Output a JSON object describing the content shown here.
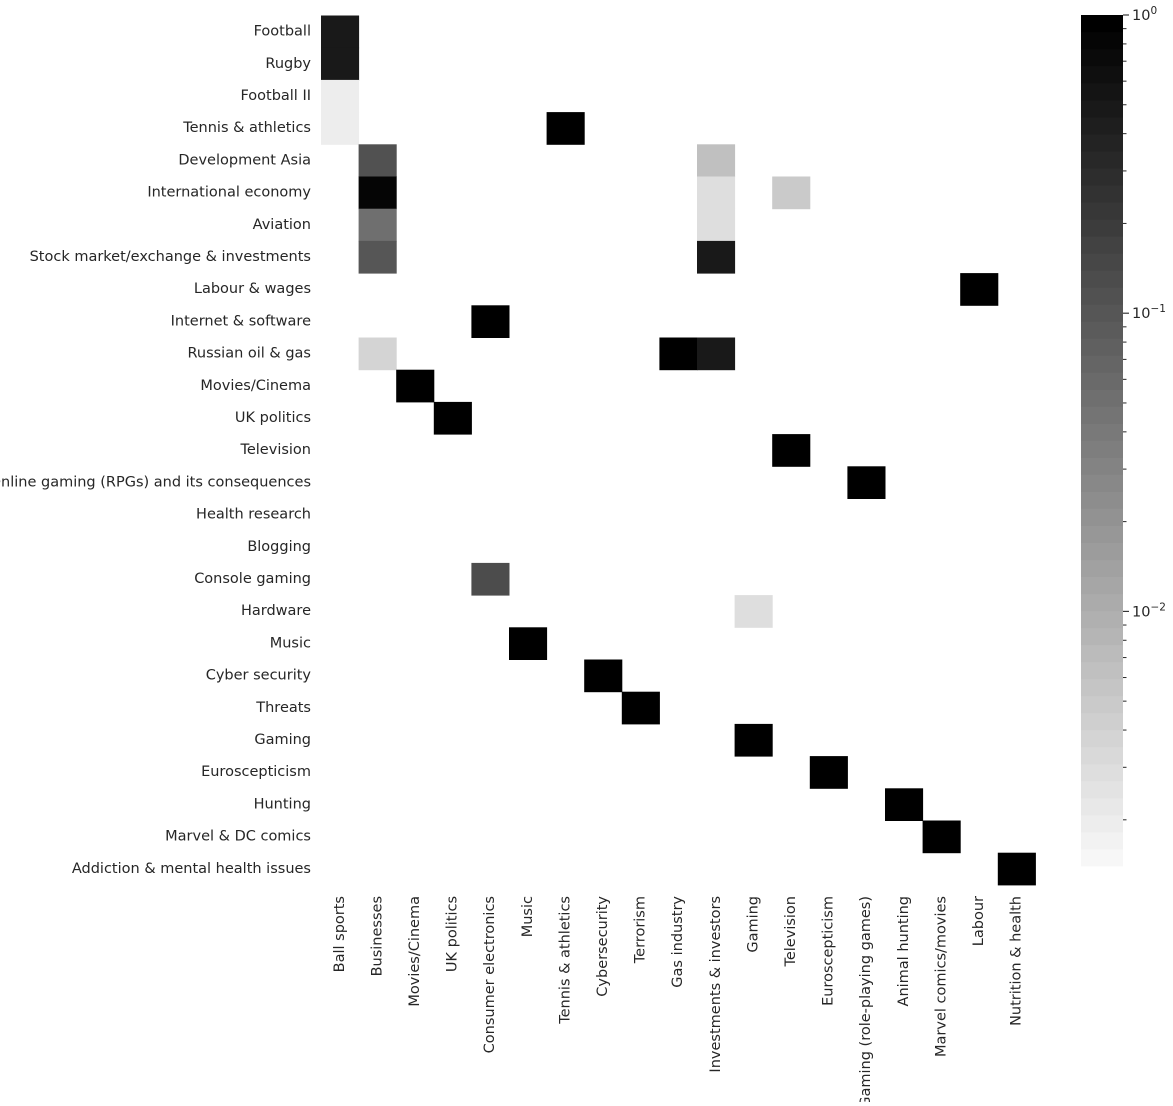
{
  "chart_data": {
    "type": "heatmap",
    "title": "",
    "xlabel": "",
    "ylabel": "",
    "rows": [
      "Football",
      "Rugby",
      "Football II",
      "Tennis & athletics",
      "Development Asia",
      "International economy",
      "Aviation",
      "Stock market/exchange & investments",
      "Labour & wages",
      "Internet & software",
      "Russian oil & gas",
      "Movies/Cinema",
      "UK politics",
      "Television",
      "Online gaming (RPGs) and its consequences",
      "Health research",
      "Blogging",
      "Console gaming",
      "Hardware",
      "Music",
      "Cyber security",
      "Threats",
      "Gaming ",
      "Euroscepticism",
      "Hunting",
      "Marvel & DC comics",
      "Addiction & mental health issues"
    ],
    "columns": [
      "Ball sports",
      "Businesses",
      "Movies/Cinema",
      "UK politics",
      "Consumer electronics",
      "Music",
      "Tennis & athletics",
      "Cybersecurity",
      "Terrorism",
      "Gas industry",
      "Investments & investors",
      "Gaming",
      "Television",
      "Euroscepticism",
      "Gaming (role-playing games)",
      "Animal hunting",
      "Marvel comics/movies",
      "Labour",
      "Nutrition & health"
    ],
    "cells": [
      {
        "row": 0,
        "col": 0,
        "value": 0.5
      },
      {
        "row": 1,
        "col": 0,
        "value": 0.5
      },
      {
        "row": 2,
        "col": 0,
        "value": 0.002
      },
      {
        "row": 3,
        "col": 0,
        "value": 0.002
      },
      {
        "row": 3,
        "col": 6,
        "value": 1.0
      },
      {
        "row": 4,
        "col": 1,
        "value": 0.12
      },
      {
        "row": 4,
        "col": 10,
        "value": 0.006
      },
      {
        "row": 5,
        "col": 1,
        "value": 0.85
      },
      {
        "row": 5,
        "col": 10,
        "value": 0.003
      },
      {
        "row": 5,
        "col": 12,
        "value": 0.005
      },
      {
        "row": 6,
        "col": 1,
        "value": 0.05
      },
      {
        "row": 6,
        "col": 10,
        "value": 0.003
      },
      {
        "row": 7,
        "col": 1,
        "value": 0.1
      },
      {
        "row": 7,
        "col": 10,
        "value": 0.5
      },
      {
        "row": 8,
        "col": 17,
        "value": 1.0
      },
      {
        "row": 9,
        "col": 4,
        "value": 0.9
      },
      {
        "row": 10,
        "col": 1,
        "value": 0.004
      },
      {
        "row": 10,
        "col": 9,
        "value": 1.0
      },
      {
        "row": 10,
        "col": 10,
        "value": 0.5
      },
      {
        "row": 11,
        "col": 2,
        "value": 1.0
      },
      {
        "row": 12,
        "col": 3,
        "value": 0.95
      },
      {
        "row": 13,
        "col": 12,
        "value": 1.0
      },
      {
        "row": 14,
        "col": 14,
        "value": 1.0
      },
      {
        "row": 17,
        "col": 4,
        "value": 0.13
      },
      {
        "row": 18,
        "col": 11,
        "value": 0.003
      },
      {
        "row": 19,
        "col": 5,
        "value": 1.0
      },
      {
        "row": 20,
        "col": 7,
        "value": 1.0
      },
      {
        "row": 21,
        "col": 8,
        "value": 1.0
      },
      {
        "row": 22,
        "col": 11,
        "value": 1.0
      },
      {
        "row": 23,
        "col": 13,
        "value": 1.0
      },
      {
        "row": 24,
        "col": 15,
        "value": 1.0
      },
      {
        "row": 25,
        "col": 16,
        "value": 1.0
      },
      {
        "row": 26,
        "col": 18,
        "value": 1.0
      }
    ],
    "colorbar": {
      "scale": "log",
      "range": [
        0.0014,
        1.0
      ],
      "levels": 50,
      "ticks": [
        {
          "value": 1,
          "base": "10",
          "exp": "0"
        },
        {
          "value": 0.1,
          "base": "10",
          "exp": "−1"
        },
        {
          "value": 0.01,
          "base": "10",
          "exp": "−2"
        }
      ],
      "low_color": "#f7f7f7",
      "high_color": "#000000"
    },
    "grid": false,
    "legend": "right"
  }
}
